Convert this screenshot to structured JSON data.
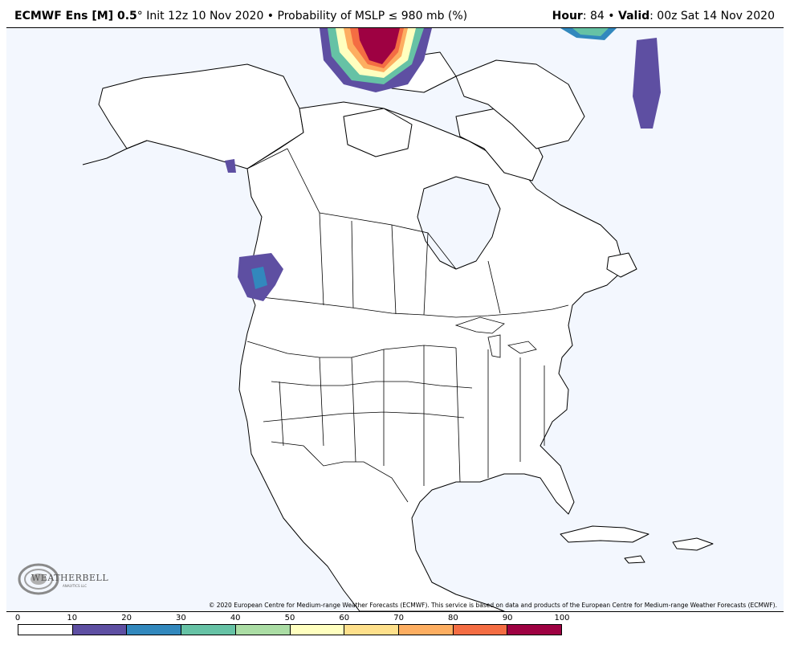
{
  "header": {
    "model": "ECMWF Ens [M] 0.5",
    "degree": "°",
    "init": " Init 12z 10 Nov 2020",
    "bullet": " • ",
    "product": "Probability of MSLP ≤ 980 mb (%)",
    "hour_label": "Hour",
    "hour_value": ": 84",
    "valid_label": "Valid",
    "valid_value": ": 00z Sat 14 Nov 2020"
  },
  "credit": "© 2020 European Centre for Medium-range Weather Forecasts (ECMWF). This service is based on data and products of the European Centre for Medium-range Weather Forecasts (ECMWF).",
  "logo": {
    "text": "WEATHERBELL",
    "sub": "ANALYTICS LLC"
  },
  "colorbar": {
    "ticks": [
      "0",
      "10",
      "20",
      "30",
      "40",
      "50",
      "60",
      "70",
      "80",
      "90",
      "100"
    ],
    "colors": [
      "#ffffff",
      "#5e4fa2",
      "#3288bd",
      "#66c2a5",
      "#abdda4",
      "#ffffbf",
      "#fee08b",
      "#fdae61",
      "#f46d43",
      "#9e0142"
    ]
  },
  "map_style": {
    "ocean": "#f3f7fe",
    "land": "#ffffff",
    "border": "#000000"
  }
}
